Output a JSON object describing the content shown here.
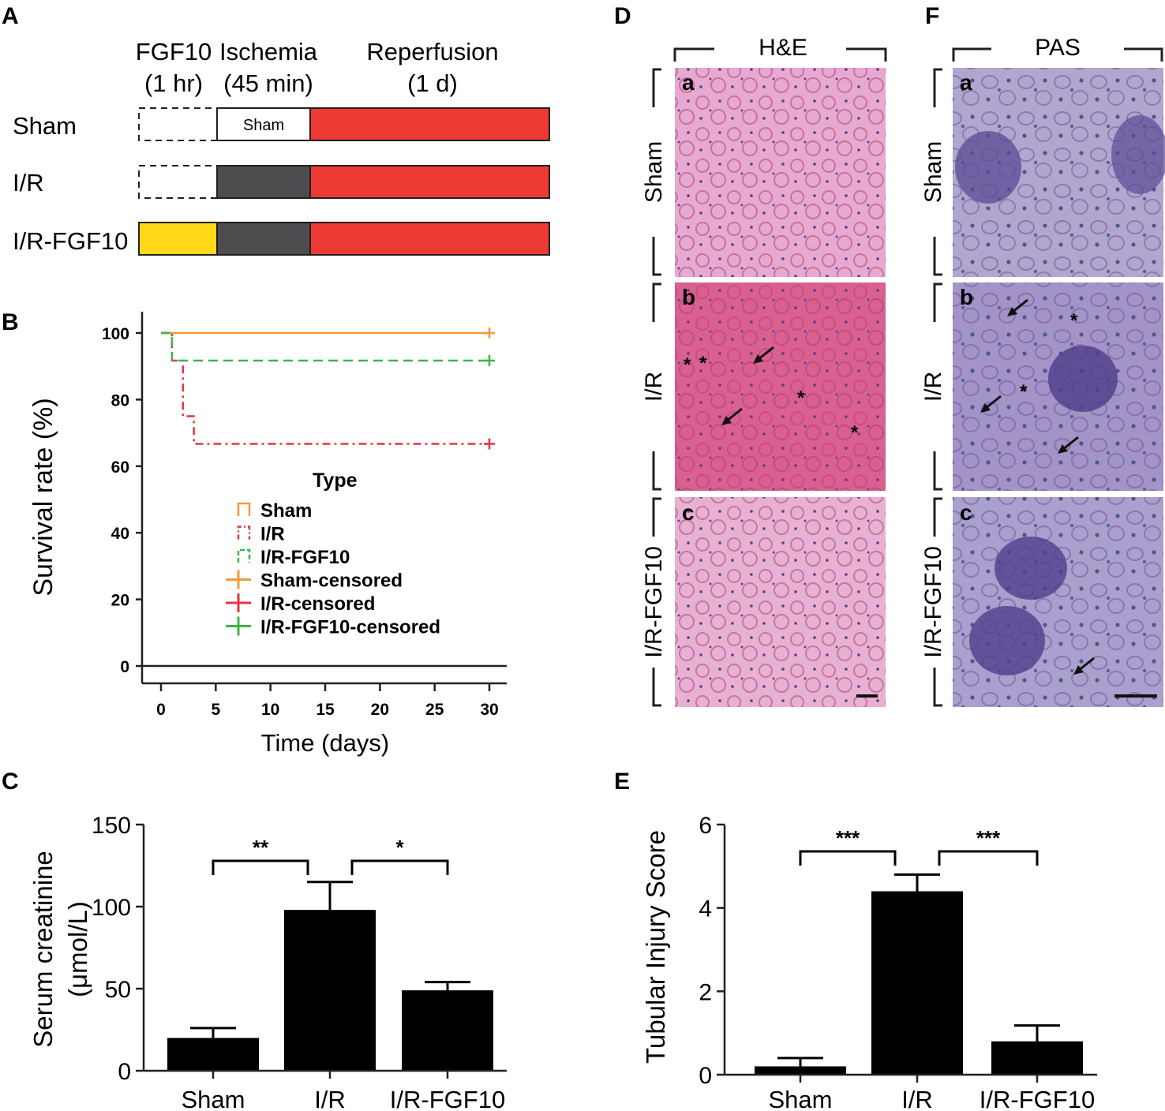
{
  "panel_letters": {
    "A": "A",
    "B": "B",
    "C": "C",
    "D": "D",
    "E": "E",
    "F": "F"
  },
  "panelA": {
    "headers": [
      {
        "line1": "FGF10",
        "line2": "(1 hr)"
      },
      {
        "line1": "Ischemia",
        "line2": "(45 min)"
      },
      {
        "line1": "Reperfusion",
        "line2": "(1 d)"
      }
    ],
    "rows": [
      {
        "label": "Sham",
        "box_label": "Sham"
      },
      {
        "label": "I/R",
        "box_label": ""
      },
      {
        "label": "I/R-FGF10",
        "box_label": ""
      }
    ],
    "colors": {
      "fgf10": "#ffd817",
      "ischemia": "#4d4d4f",
      "reperfusion": "#ee3a35",
      "sham_box": "#ffffff"
    }
  },
  "histology": {
    "D": {
      "stain": "H&E",
      "sub": [
        "a",
        "b",
        "c"
      ],
      "rows": [
        "Sham",
        "I/R",
        "I/R-FGF10"
      ],
      "tint": [
        "#e6a9cf",
        "#d9608f",
        "#e7b1d1"
      ],
      "marks": "*"
    },
    "F": {
      "stain": "PAS",
      "sub": [
        "a",
        "b",
        "c"
      ],
      "rows": [
        "Sham",
        "I/R",
        "I/R-FGF10"
      ],
      "tint": [
        "#b2a6cf",
        "#a393c7",
        "#ab9fcd"
      ],
      "marks": "*"
    }
  },
  "chart_data": [
    {
      "panel": "B",
      "type": "line",
      "title": "",
      "xlabel": "Time (days)",
      "ylabel": "Survival rate (%)",
      "xlim": [
        -2,
        32
      ],
      "ylim": [
        0,
        100
      ],
      "xticks": [
        0,
        5,
        10,
        15,
        20,
        25,
        30
      ],
      "yticks": [
        0,
        20,
        40,
        60,
        80,
        100
      ],
      "legend_title": "Type",
      "legend_position": "center-right",
      "series": [
        {
          "name": "Sham",
          "color": "#f39a3c",
          "dash": "solid",
          "x": [
            0,
            30
          ],
          "y": [
            100,
            100
          ]
        },
        {
          "name": "I/R",
          "color": "#e3363f",
          "dash": "dashdot",
          "x": [
            0,
            1,
            2,
            3,
            30
          ],
          "y": [
            100,
            91.7,
            75,
            66.7,
            66.7
          ]
        },
        {
          "name": "I/R-FGF10",
          "color": "#3fb54a",
          "dash": "dashed",
          "x": [
            0,
            1,
            30
          ],
          "y": [
            100,
            91.7,
            91.7
          ]
        },
        {
          "name": "Sham-censored",
          "color": "#f39a3c",
          "marker": "+",
          "x": [
            30
          ],
          "y": [
            100
          ]
        },
        {
          "name": "I/R-censored",
          "color": "#e3363f",
          "marker": "+",
          "x": [
            30
          ],
          "y": [
            66.7
          ]
        },
        {
          "name": "I/R-FGF10-censored",
          "color": "#3fb54a",
          "marker": "+",
          "x": [
            30
          ],
          "y": [
            91.7
          ]
        }
      ]
    },
    {
      "panel": "C",
      "type": "bar",
      "title": "",
      "ylabel_line1": "Serum creatinine",
      "ylabel_line2": "(μmol/L)",
      "categories": [
        "Sham",
        "I/R",
        "I/R-FGF10"
      ],
      "values": [
        20,
        98,
        49
      ],
      "errors": [
        6,
        17,
        5
      ],
      "ylim": [
        0,
        150
      ],
      "yticks": [
        0,
        50,
        100,
        150
      ],
      "significance": [
        {
          "from": 0,
          "to": 1,
          "label": "**"
        },
        {
          "from": 1,
          "to": 2,
          "label": "*"
        }
      ]
    },
    {
      "panel": "E",
      "type": "bar",
      "title": "",
      "ylabel": "Tubular Injury Score",
      "categories": [
        "Sham",
        "I/R",
        "I/R-FGF10"
      ],
      "values": [
        0.2,
        4.4,
        0.8
      ],
      "errors": [
        0.2,
        0.4,
        0.38
      ],
      "ylim": [
        0,
        6
      ],
      "yticks": [
        0,
        2,
        4,
        6
      ],
      "significance": [
        {
          "from": 0,
          "to": 1,
          "label": "***"
        },
        {
          "from": 1,
          "to": 2,
          "label": "***"
        }
      ]
    }
  ]
}
